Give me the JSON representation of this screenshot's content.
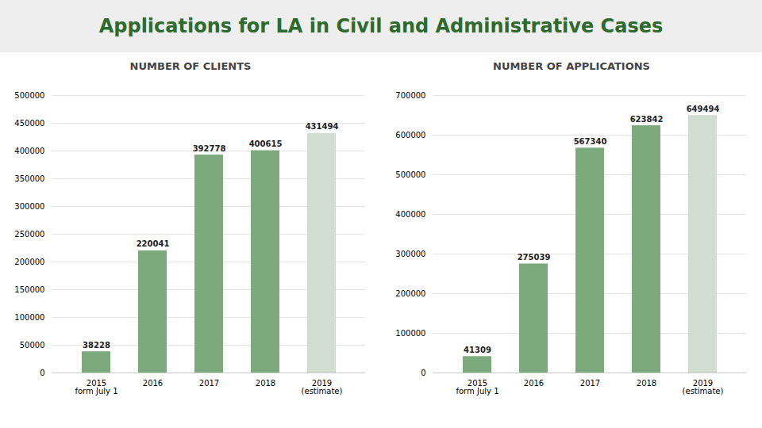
{
  "title": "Applications for LA in Civil and Administrative Cases",
  "chart_data": [
    {
      "type": "bar",
      "subtitle": "NUMBER OF CLIENTS",
      "categories": [
        "2015\nform July 1",
        "2016",
        "2017",
        "2018",
        "2019\n(estimate)"
      ],
      "values": [
        38228,
        220041,
        392778,
        400615,
        431494
      ],
      "colors": [
        "#7daa7d",
        "#7daa7d",
        "#7daa7d",
        "#7daa7d",
        "#d0ddd0"
      ],
      "ylim": [
        0,
        500000
      ],
      "yticks": [
        0,
        50000,
        100000,
        150000,
        200000,
        250000,
        300000,
        350000,
        400000,
        450000,
        500000
      ],
      "grid": true,
      "data_labels": true
    },
    {
      "type": "bar",
      "subtitle": "NUMBER OF APPLICATIONS",
      "categories": [
        "2015\nform July 1",
        "2016",
        "2017",
        "2018",
        "2019\n(estimate)"
      ],
      "values": [
        41309,
        275039,
        567340,
        623842,
        649494
      ],
      "colors": [
        "#7daa7d",
        "#7daa7d",
        "#7daa7d",
        "#7daa7d",
        "#d0ddd0"
      ],
      "ylim": [
        0,
        700000
      ],
      "yticks": [
        0,
        100000,
        200000,
        300000,
        400000,
        500000,
        600000,
        700000
      ],
      "grid": true,
      "data_labels": true
    }
  ]
}
